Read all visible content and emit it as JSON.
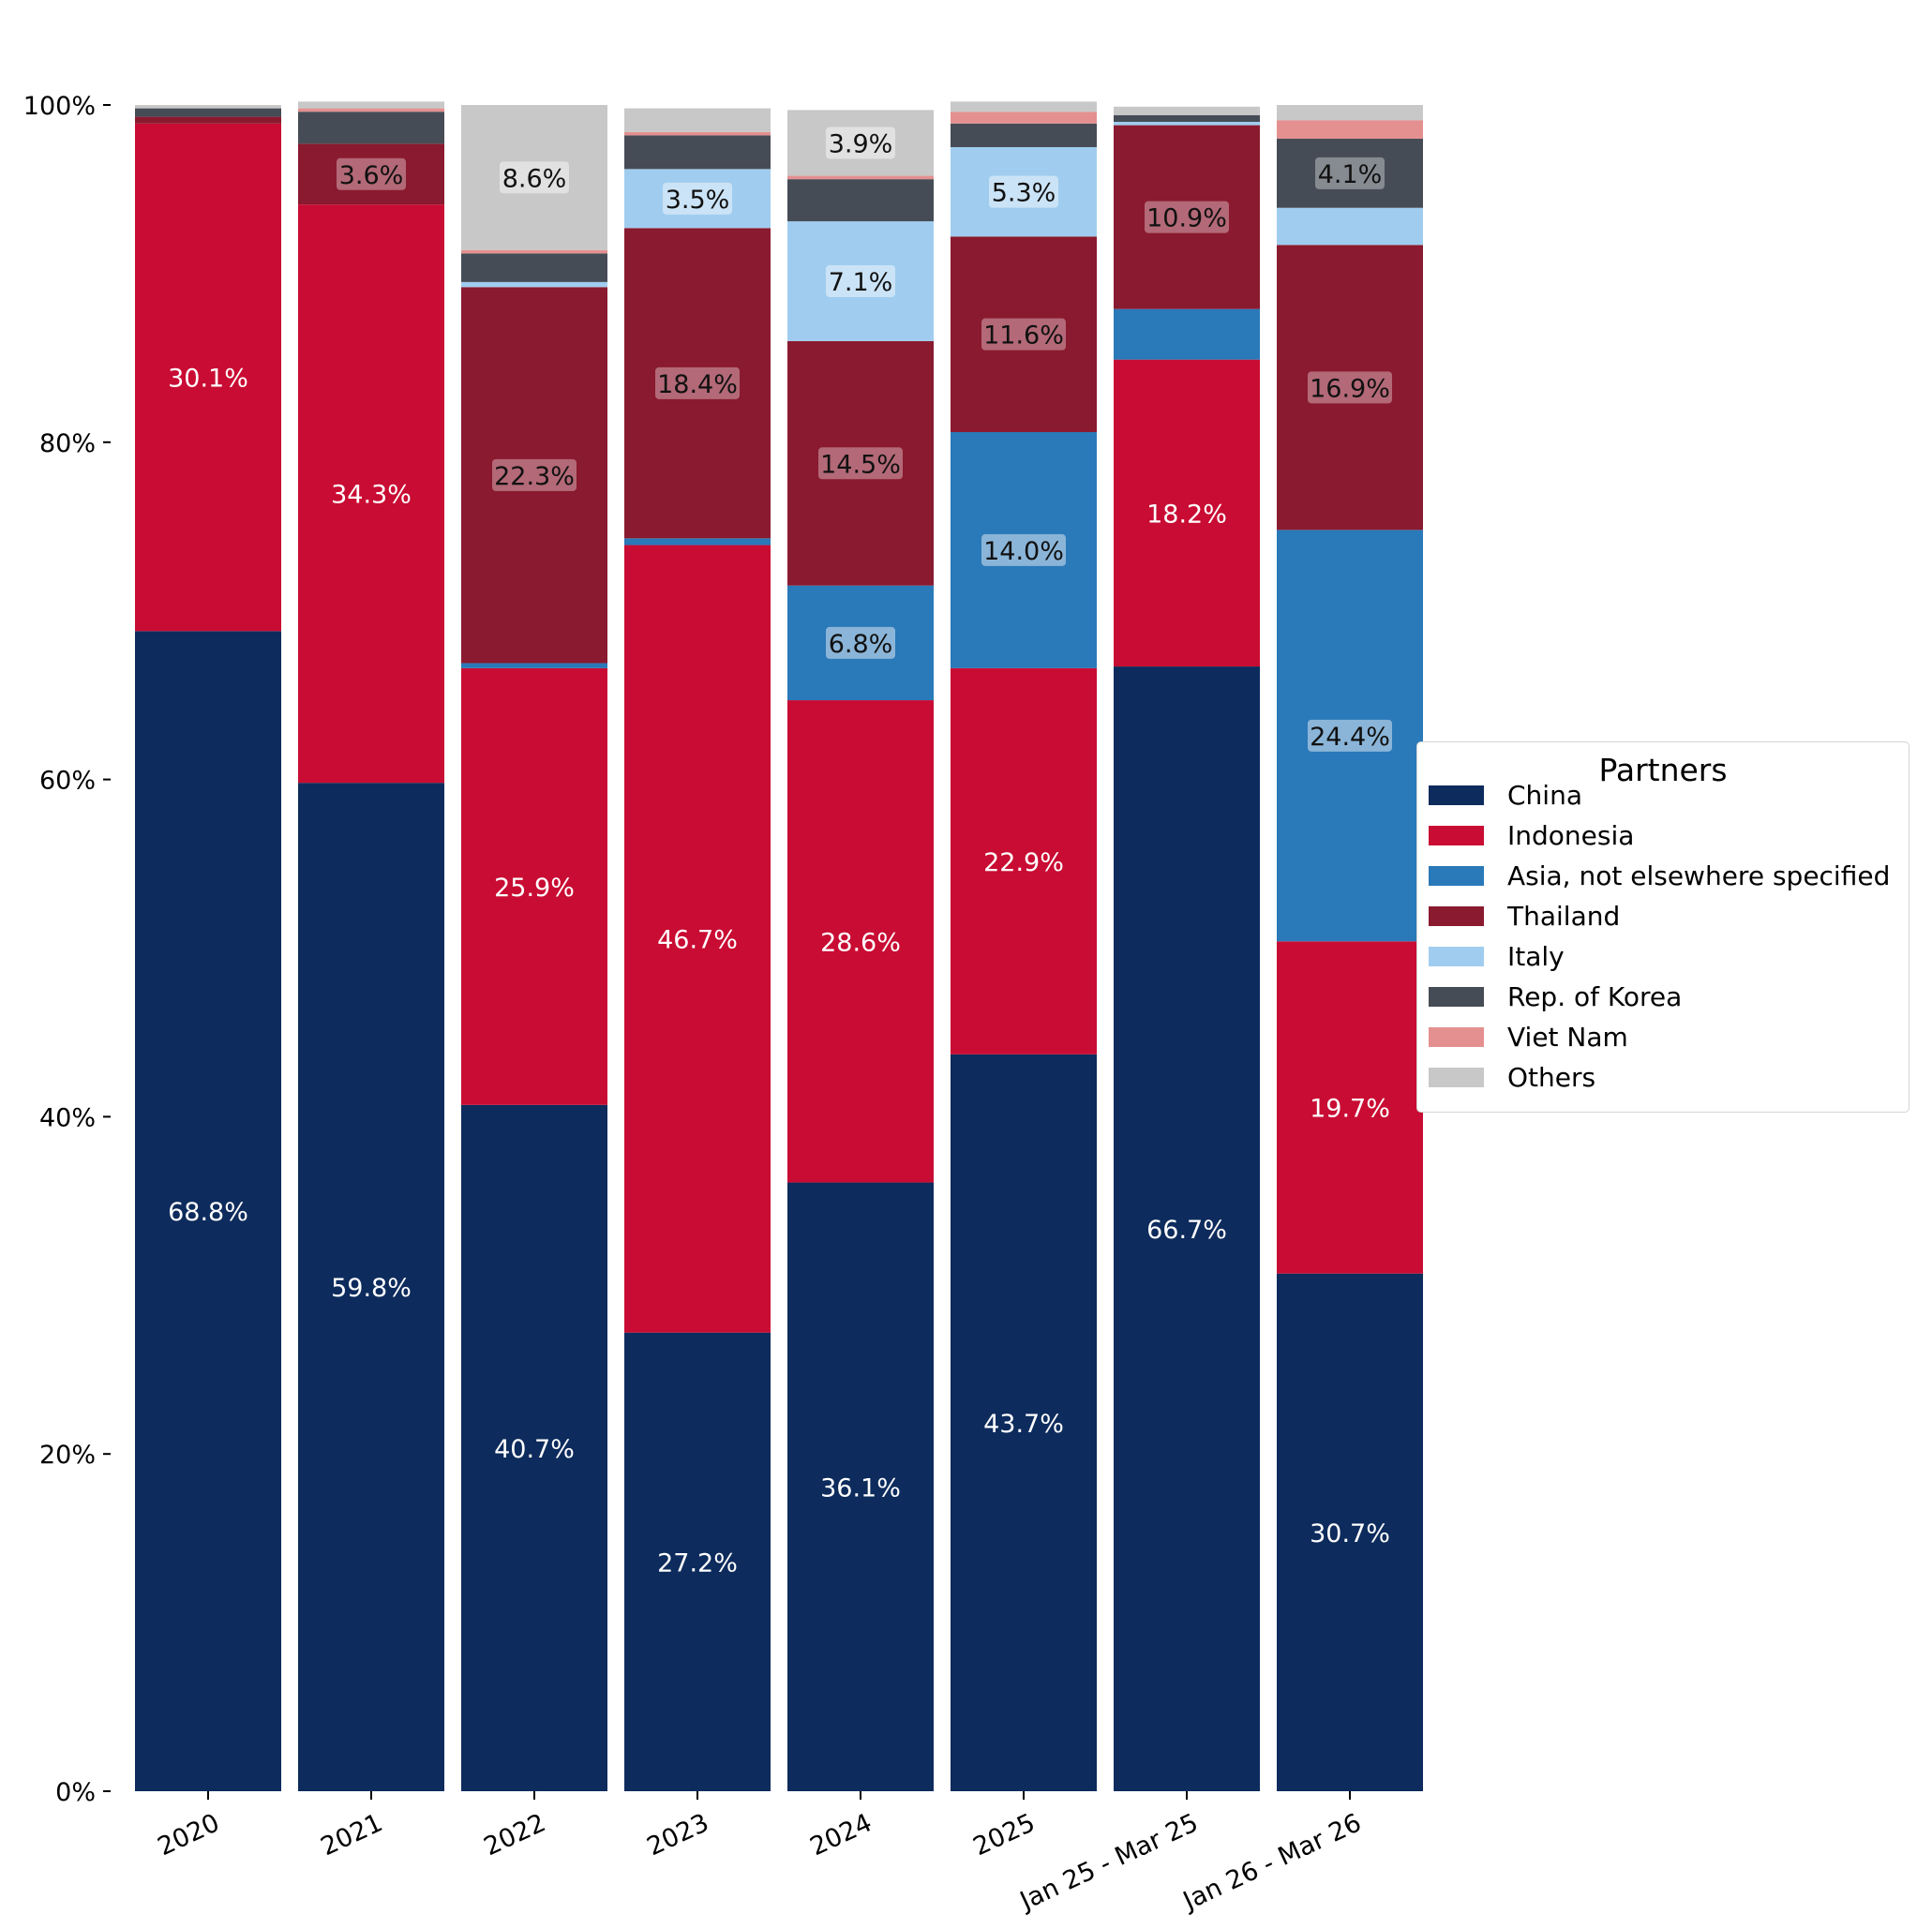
{
  "chart_data": {
    "type": "bar",
    "stacked": true,
    "categories": [
      "2020",
      "2021",
      "2022",
      "2023",
      "2024",
      "2025",
      "Jan 25 - Mar 25",
      "Jan 26 - Mar 26"
    ],
    "ylim": [
      0,
      100
    ],
    "yticks": [
      "0%",
      "20%",
      "40%",
      "60%",
      "80%",
      "100%"
    ],
    "legend": {
      "title": "Partners",
      "position": "right"
    },
    "series": [
      {
        "name": "China",
        "color": "#0d2b5c",
        "values": [
          68.8,
          59.8,
          40.7,
          27.2,
          36.1,
          43.7,
          66.7,
          30.7
        ],
        "labels": [
          "68.8%",
          "59.8%",
          "40.7%",
          "27.2%",
          "36.1%",
          "43.7%",
          "66.7%",
          "30.7%"
        ]
      },
      {
        "name": "Indonesia",
        "color": "#c90c33",
        "values": [
          30.1,
          34.3,
          25.9,
          46.7,
          28.6,
          22.9,
          18.2,
          19.7
        ],
        "labels": [
          "30.1%",
          "34.3%",
          "25.9%",
          "46.7%",
          "28.6%",
          "22.9%",
          "18.2%",
          "19.7%"
        ]
      },
      {
        "name": "Asia, not elsewhere specified",
        "color": "#2a79b9",
        "values": [
          0,
          0,
          0.3,
          0.4,
          6.8,
          14.0,
          3.0,
          24.4
        ],
        "labels": [
          "",
          "",
          "",
          "",
          "6.8%",
          "14.0%",
          "",
          "24.4%"
        ]
      },
      {
        "name": "Thailand",
        "color": "#8a1a2f",
        "values": [
          0.4,
          3.6,
          22.3,
          18.4,
          14.5,
          11.6,
          10.9,
          16.9
        ],
        "labels": [
          "",
          "3.6%",
          "22.3%",
          "18.4%",
          "14.5%",
          "11.6%",
          "10.9%",
          "16.9%"
        ]
      },
      {
        "name": "Italy",
        "color": "#a0cdef",
        "values": [
          0,
          0,
          0.3,
          3.5,
          7.1,
          5.3,
          0.2,
          2.2
        ],
        "labels": [
          "",
          "",
          "",
          "3.5%",
          "7.1%",
          "5.3%",
          "",
          ""
        ]
      },
      {
        "name": "Rep. of Korea",
        "color": "#464c56",
        "values": [
          0.5,
          1.9,
          1.7,
          2.0,
          2.5,
          1.4,
          0.4,
          4.1
        ],
        "labels": [
          "",
          "",
          "",
          "",
          "",
          "",
          "",
          "4.1%"
        ]
      },
      {
        "name": "Viet Nam",
        "color": "#e49090",
        "values": [
          0,
          0.2,
          0.2,
          0.2,
          0.2,
          0.7,
          0,
          1.1
        ],
        "labels": [
          "",
          "",
          "",
          "",
          "",
          "",
          "",
          ""
        ]
      },
      {
        "name": "Others",
        "color": "#c8c8c8",
        "values": [
          0.2,
          0.4,
          8.6,
          1.4,
          3.9,
          0.6,
          0.5,
          0.9
        ],
        "labels": [
          "",
          "",
          "8.6%",
          "",
          "3.9%",
          "",
          "",
          ""
        ]
      }
    ]
  }
}
